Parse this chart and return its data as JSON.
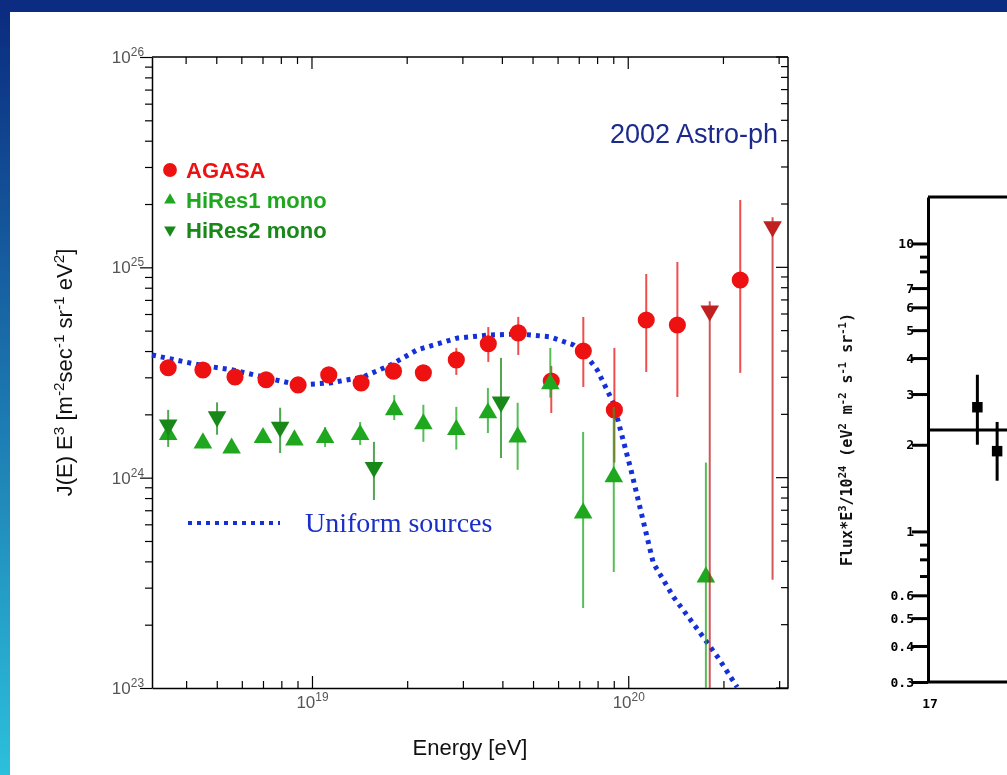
{
  "chart_data": [
    {
      "type": "scatter",
      "xlabel": "Energy [eV]",
      "ylabel": "J(E) E$^{3}$ [m$^{-2}$sec$^{-1}$ sr$^{-1}$ eV$^{2}$]",
      "annotations": [
        "2002 Astro-ph"
      ],
      "log": "xy",
      "legend": "top left",
      "xlim": [
        3.12e+18,
        3.2e+20
      ],
      "ylim": [
        1e+23,
        1e+26
      ],
      "xticks": [
        {
          "value": 4e+18,
          "label": null
        },
        {
          "value": 5e+18,
          "label": null
        },
        {
          "value": 6e+18,
          "label": null
        },
        {
          "value": 7e+18,
          "label": null
        },
        {
          "value": 8e+18,
          "label": null
        },
        {
          "value": 9e+18,
          "label": null
        },
        {
          "value": 1e+19,
          "label": "10$^{19}$"
        },
        {
          "value": 2e+19,
          "label": null
        },
        {
          "value": 3e+19,
          "label": null
        },
        {
          "value": 4e+19,
          "label": null
        },
        {
          "value": 5e+19,
          "label": null
        },
        {
          "value": 6e+19,
          "label": null
        },
        {
          "value": 7e+19,
          "label": null
        },
        {
          "value": 8e+19,
          "label": null
        },
        {
          "value": 9e+19,
          "label": null
        },
        {
          "value": 1e+20,
          "label": "10$^{20}$"
        },
        {
          "value": 2e+20,
          "label": null
        },
        {
          "value": 3e+20,
          "label": null
        }
      ],
      "yticks": [
        {
          "value": 1e+23,
          "label": "10$^{23}$"
        },
        {
          "value": 2e+23,
          "label": null
        },
        {
          "value": 3e+23,
          "label": null
        },
        {
          "value": 4e+23,
          "label": null
        },
        {
          "value": 5e+23,
          "label": null
        },
        {
          "value": 6e+23,
          "label": null
        },
        {
          "value": 7e+23,
          "label": null
        },
        {
          "value": 8e+23,
          "label": null
        },
        {
          "value": 9e+23,
          "label": null
        },
        {
          "value": 1e+24,
          "label": "10$^{24}$"
        },
        {
          "value": 2e+24,
          "label": null
        },
        {
          "value": 3e+24,
          "label": null
        },
        {
          "value": 4e+24,
          "label": null
        },
        {
          "value": 5e+24,
          "label": null
        },
        {
          "value": 6e+24,
          "label": null
        },
        {
          "value": 7e+24,
          "label": null
        },
        {
          "value": 8e+24,
          "label": null
        },
        {
          "value": 9e+24,
          "label": null
        },
        {
          "value": 1e+25,
          "label": "10$^{25}$"
        },
        {
          "value": 2e+25,
          "label": null
        },
        {
          "value": 3e+25,
          "label": null
        },
        {
          "value": 4e+25,
          "label": null
        },
        {
          "value": 5e+25,
          "label": null
        },
        {
          "value": 6e+25,
          "label": null
        },
        {
          "value": 7e+25,
          "label": null
        },
        {
          "value": 8e+25,
          "label": null
        },
        {
          "value": 9e+25,
          "label": null
        },
        {
          "value": 1e+26,
          "label": "10$^{26}$"
        }
      ],
      "series": [
        {
          "name": "AGASA",
          "marker": "circle",
          "color": "#ee1111",
          "x": [
            3.51e+18,
            4.52e+18,
            5.71e+18,
            7.16e+18,
            9.04e+18,
            1.13e+19,
            1.43e+19,
            1.81e+19,
            2.25e+19,
            2.86e+19,
            3.61e+19,
            4.49e+19,
            5.71e+19,
            7.21e+19,
            9.04e+19,
            1.14e+20,
            1.43e+20,
            2.26e+20
          ],
          "values": [
            3.33e+24,
            3.25e+24,
            3.01e+24,
            2.92e+24,
            2.76e+24,
            3.08e+24,
            2.82e+24,
            3.21e+24,
            3.15e+24,
            3.63e+24,
            4.33e+24,
            4.88e+24,
            2.88e+24,
            4e+24,
            2.1e+24,
            5.62e+24,
            5.32e+24,
            8.71e+24
          ],
          "errors": [
            null,
            null,
            null,
            null,
            null,
            null,
            null,
            null,
            null,
            [
              3.08e+24,
              4.14e+24
            ],
            [
              3.55e+24,
              5.2e+24
            ],
            [
              3.83e+24,
              5.81e+24
            ],
            [
              2.03e+24,
              3.4e+24
            ],
            [
              2.7e+24,
              5.81e+24
            ],
            [
              1.18e+24,
              4.14e+24
            ],
            [
              3.18e+24,
              9.3e+24
            ],
            [
              2.42e+24,
              1.06e+25
            ],
            [
              3.15e+24,
              2.09e+25
            ]
          ]
        },
        {
          "name": "HiRes1 mono",
          "marker": "triangle",
          "color": "#1fa81f",
          "x": [
            3.51e+18,
            4.52e+18,
            5.57e+18,
            7e+18,
            8.8e+18,
            1.1e+19,
            1.42e+19,
            1.82e+19,
            2.25e+19,
            2.86e+19,
            3.6e+19,
            4.47e+19,
            5.67e+19,
            7.2e+19,
            9e+19,
            1.76e+20
          ],
          "values": [
            1.6e+24,
            1.46e+24,
            1.38e+24,
            1.55e+24,
            1.51e+24,
            1.55e+24,
            1.6e+24,
            2.1e+24,
            1.8e+24,
            1.69e+24,
            2.03e+24,
            1.56e+24,
            2.79e+24,
            6.79e+23,
            1.01e+24,
            3.37e+23
          ],
          "errors": [
            null,
            [
              1.38e+24,
              1.6e+24
            ],
            null,
            null,
            null,
            [
              1.4e+24,
              1.74e+24
            ],
            [
              1.43e+24,
              1.84e+24
            ],
            [
              1.88e+24,
              2.47e+24
            ],
            [
              1.48e+24,
              2.22e+24
            ],
            [
              1.36e+24,
              2.17e+24
            ],
            [
              1.63e+24,
              2.67e+24
            ],
            [
              1.09e+24,
              2.27e+24
            ],
            [
              2.4e+24,
              4.14e+24
            ],
            [
              2.4e+23,
              1.65e+24
            ],
            [
              3.56e+23,
              2.17e+24
            ],
            [
              1e+23,
              1.18e+24
            ]
          ]
        },
        {
          "name": "HiRes2 mono",
          "marker": "triangle-down",
          "color": "#188818",
          "x": [
            3.51e+18,
            5.01e+18,
            7.93e+18,
            1.57e+19,
            3.96e+19
          ],
          "values": [
            1.78e+24,
            1.95e+24,
            1.74e+24,
            1.12e+24,
            2.29e+24
          ],
          "errors": [
            [
              1.4e+24,
              2.1e+24
            ],
            [
              1.6e+24,
              2.28e+24
            ],
            [
              1.31e+24,
              2.15e+24
            ],
            [
              7.83e+23,
              1.48e+24
            ],
            [
              1.24e+24,
              3.71e+24
            ]
          ]
        },
        {
          "marker": "triangle-down",
          "color": "#c02020",
          "x": [
            1.81e+20,
            2.86e+20
          ],
          "values": [
            6.21e+24,
            1.56e+25
          ],
          "errors": [
            [
              1e+23,
              6.9e+24
            ],
            [
              3.27e+23,
              1.73e+25
            ]
          ]
        },
        {
          "name": "Uniform sources",
          "type": "line",
          "line_style": "dotted",
          "color": "#1530d8",
          "x": [
            3.12e+18,
            4.43e+18,
            5.62e+18,
            7.21e+18,
            9.04e+18,
            1.14e+19,
            1.45e+19,
            1.77e+19,
            2.15e+19,
            2.88e+19,
            3.66e+19,
            4.56e+19,
            5.67e+19,
            6.7e+19,
            7.21e+19,
            7.98e+19,
            8.97e+19,
            9.58e+19,
            1.02e+20,
            1.2e+20,
            1.39e+20,
            1.66e+20,
            1.92e+20,
            2.21e+20
          ],
          "values": [
            3.83e+24,
            3.43e+24,
            3.25e+24,
            2.98e+24,
            2.76e+24,
            2.82e+24,
            3.01e+24,
            3.43e+24,
            4.05e+24,
            4.61e+24,
            4.77e+24,
            4.82e+24,
            4.67e+24,
            4.28e+24,
            3.96e+24,
            3.25e+24,
            2.27e+24,
            1.56e+24,
            1.09e+24,
            3.93e+23,
            2.71e+23,
            1.89e+23,
            1.4e+23,
            1.01e+23
          ]
        }
      ]
    },
    {
      "type": "scatter",
      "ylabel": "Flux*E$^{3}$/10$^{24}$ (eV$^{2}$ m$^{-2}$ s$^{-1}$ sr$^{-1}$)",
      "annotations": [
        "17"
      ],
      "log": "y",
      "categories": [
        null,
        null,
        null,
        null
      ],
      "ylim": [
        0.3,
        14.5
      ],
      "yticks": [
        0.3,
        0.4,
        0.5,
        0.6,
        {
          "value": 0.7,
          "label": null
        },
        {
          "value": 0.8,
          "label": null
        },
        {
          "value": 0.9,
          "label": null
        },
        1,
        2,
        3,
        4,
        5,
        6,
        7,
        {
          "value": 8,
          "label": null
        },
        {
          "value": 9,
          "label": null
        },
        10
      ],
      "series": [
        {
          "marker": "square",
          "color": "#000000",
          "values": [
            null,
            null,
            2.7,
            1.9
          ],
          "errors": [
            null,
            null,
            [
              2.0,
              3.5
            ],
            [
              1.5,
              2.4
            ]
          ]
        }
      ],
      "ref_lines": [
        {
          "axis": "y",
          "value": 2.25,
          "color": "#000000"
        }
      ]
    }
  ]
}
